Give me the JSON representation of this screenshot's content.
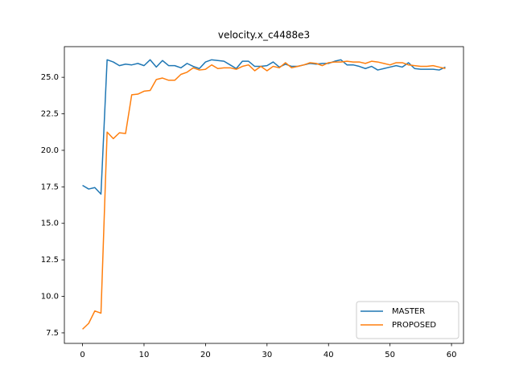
{
  "chart_data": {
    "type": "line",
    "title": "velocity.x_c4488e3",
    "x": [
      0,
      1,
      2,
      3,
      4,
      5,
      6,
      7,
      8,
      9,
      10,
      11,
      12,
      13,
      14,
      15,
      16,
      17,
      18,
      19,
      20,
      21,
      22,
      23,
      24,
      25,
      26,
      27,
      28,
      29,
      30,
      31,
      32,
      33,
      34,
      35,
      36,
      37,
      38,
      39,
      40,
      41,
      42,
      43,
      44,
      45,
      46,
      47,
      48,
      49,
      50,
      51,
      52,
      53,
      54,
      55,
      56,
      57,
      58,
      59
    ],
    "series": [
      {
        "name": "MASTER",
        "color": "#1f77b4",
        "values": [
          17.6,
          17.35,
          17.45,
          17.0,
          26.2,
          26.05,
          25.8,
          25.9,
          25.85,
          25.95,
          25.8,
          26.2,
          25.7,
          26.15,
          25.8,
          25.8,
          25.65,
          25.95,
          25.75,
          25.6,
          26.05,
          26.2,
          26.15,
          26.1,
          25.85,
          25.6,
          26.1,
          26.1,
          25.75,
          25.75,
          25.8,
          26.05,
          25.7,
          25.9,
          25.75,
          25.75,
          25.85,
          25.95,
          25.9,
          25.95,
          25.95,
          26.1,
          26.2,
          25.85,
          25.85,
          25.75,
          25.6,
          25.75,
          25.5,
          25.6,
          25.7,
          25.8,
          25.7,
          26.0,
          25.6,
          25.55,
          25.55,
          25.55,
          25.5,
          25.7
        ]
      },
      {
        "name": "PROPOSED",
        "color": "#ff7f0e",
        "values": [
          7.75,
          8.15,
          9.0,
          8.85,
          21.25,
          20.8,
          21.2,
          21.15,
          23.8,
          23.85,
          24.05,
          24.1,
          24.85,
          24.95,
          24.8,
          24.8,
          25.2,
          25.35,
          25.65,
          25.5,
          25.55,
          25.85,
          25.6,
          25.65,
          25.65,
          25.55,
          25.75,
          25.85,
          25.45,
          25.75,
          25.45,
          25.75,
          25.65,
          26.0,
          25.65,
          25.75,
          25.85,
          26.0,
          25.95,
          25.8,
          26.0,
          26.05,
          26.05,
          26.1,
          26.05,
          26.05,
          25.95,
          26.1,
          26.05,
          25.95,
          25.85,
          26.0,
          26.0,
          25.85,
          25.8,
          25.75,
          25.75,
          25.8,
          25.7,
          25.6
        ]
      }
    ],
    "xlim": [
      -2.95,
      61.95
    ],
    "ylim": [
      6.78,
      27.1
    ],
    "xticks": [
      0,
      10,
      20,
      30,
      40,
      50,
      60
    ],
    "yticks": [
      7.5,
      {
        "value": 10,
        "label": "10.0"
      },
      12.5,
      {
        "value": 15,
        "label": "15.0"
      },
      17.5,
      {
        "value": 20,
        "label": "20.0"
      },
      22.5,
      {
        "value": 25,
        "label": "25.0"
      }
    ],
    "grid": false,
    "legend": "lower right"
  }
}
